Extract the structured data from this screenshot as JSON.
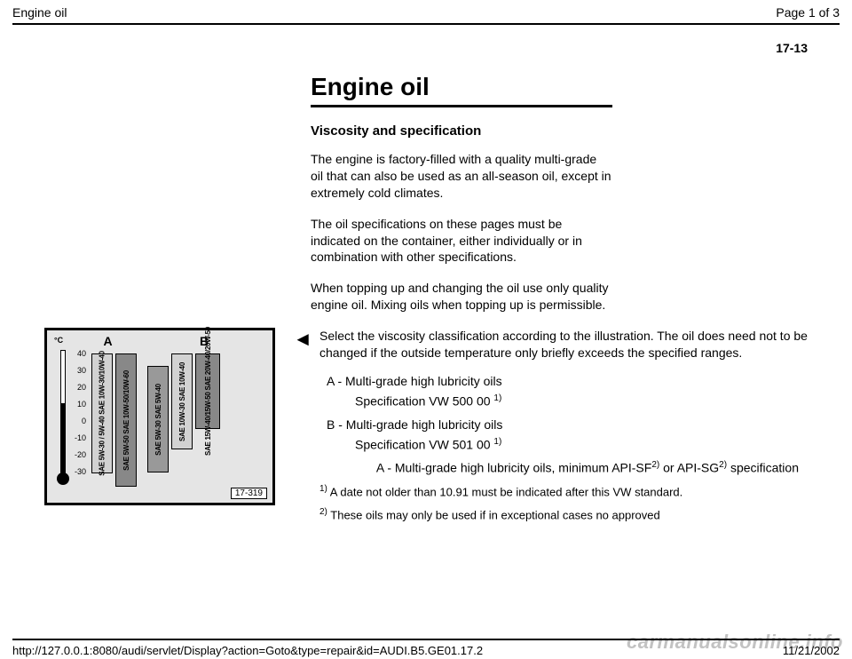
{
  "header": {
    "left": "Engine oil",
    "right": "Page 1 of 3"
  },
  "page_number": "17-13",
  "title": "Engine oil",
  "subhead": "Viscosity and specification",
  "paragraphs": [
    "The engine is factory-filled with a quality multi-grade oil that can also be used as an all-season oil, except in extremely cold climates.",
    "The oil specifications on these pages must be indicated on the container, either individually or in combination with other specifications.",
    "When topping up and changing the oil use only quality engine oil. Mixing oils when topping up is permissible."
  ],
  "arrow_glyph": "◄",
  "select_para": "Select the viscosity classification according to the illustration. The oil does need not to be changed if the outside temperature only briefly exceeds the specified ranges.",
  "specs": {
    "a_label": "A - Multi-grade high lubricity oils",
    "a_spec_pre": "Specification VW 500 00 ",
    "a_spec_sup": "1)",
    "b_label": "B - Multi-grade high lubricity oils",
    "b_spec_pre": "Specification VW 501 00 ",
    "b_spec_sup": "1)",
    "indent_pre": "A - Multi-grade high lubricity oils, minimum API-SF",
    "indent_sup1": "2)",
    "indent_mid": " or API-SG",
    "indent_sup2": "2)",
    "indent_post": " specification"
  },
  "footnotes": {
    "f1_sup": "1)",
    "f1": " A date not older than 10.91 must be indicated after this VW standard.",
    "f2_sup": "2)",
    "f2": " These oils may only be used if in exceptional cases no approved"
  },
  "diagram": {
    "label_A": "A",
    "label_B": "B",
    "unit": "°C",
    "ticks": [
      "40",
      "30",
      "20",
      "10",
      "0",
      "-10",
      "-20",
      "-30"
    ],
    "bars": {
      "A1": "SAE 5W-30 / 5W-40\nSAE 10W-30/10W-40",
      "A2": "SAE 5W-50\nSAE 10W-50/10W-60",
      "B1": "SAE 5W-30\nSAE 5W-40",
      "B2": "SAE 10W-30\nSAE 10W-40",
      "B3": "SAE 15W-40/15W-50\nSAE 20W-40/20W-50"
    },
    "id": "17-319"
  },
  "footer": {
    "url": "http://127.0.0.1:8080/audi/servlet/Display?action=Goto&type=repair&id=AUDI.B5.GE01.17.2",
    "date": "11/21/2002"
  },
  "watermark": "carmanualsonline.info",
  "colors": {
    "text": "#000000",
    "bg": "#ffffff",
    "diag_bg": "#e5e5e5"
  }
}
